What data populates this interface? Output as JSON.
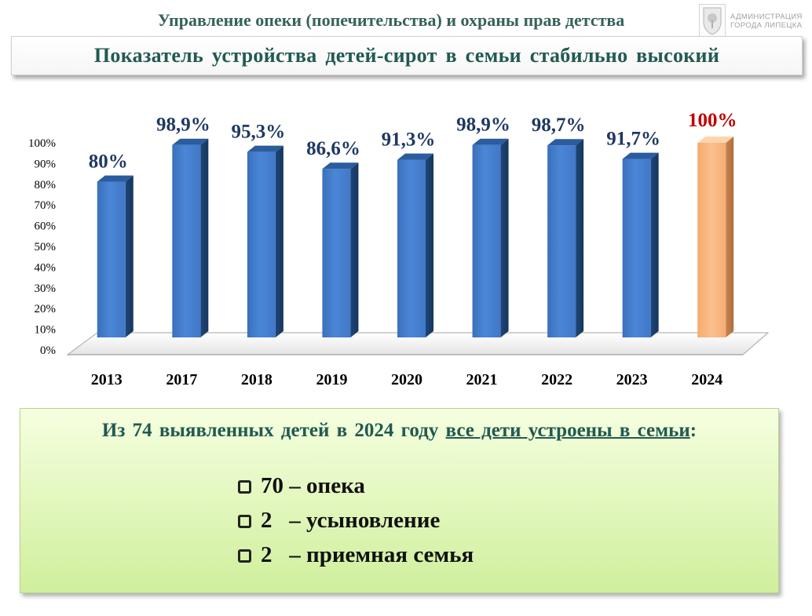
{
  "header": {
    "department_title": "Управление опеки (попечительства) и охраны прав детства",
    "logo_line1": "АДМИНИСТРАЦИЯ",
    "logo_line2": "ГОРОДА ЛИПЕЦКА"
  },
  "banner": {
    "title": "Показатель устройства детей-сирот в семьи стабильно высокий"
  },
  "chart_data": {
    "type": "bar",
    "title": "",
    "xlabel": "",
    "ylabel": "",
    "ylim": [
      0,
      100
    ],
    "y_ticks": [
      "0%",
      "10%",
      "20%",
      "30%",
      "40%",
      "50%",
      "60%",
      "70%",
      "80%",
      "90%",
      "100%"
    ],
    "categories": [
      "2013",
      "2017",
      "2018",
      "2019",
      "2020",
      "2021",
      "2022",
      "2023",
      "2024"
    ],
    "values": [
      80,
      98.9,
      95.3,
      86.6,
      91.3,
      98.9,
      98.7,
      91.7,
      100
    ],
    "data_labels": [
      "80%",
      "98,9%",
      "95,3%",
      "86,6%",
      "91,3%",
      "98,9%",
      "98,7%",
      "91,7%",
      "100%"
    ],
    "highlight_category": "2024",
    "grid": false,
    "style": "3d-column",
    "colors": {
      "bar": "#3f78c8",
      "bar_highlight": "#f9b27a",
      "label": "#1f3864",
      "label_highlight": "#c00000"
    }
  },
  "info": {
    "headline_prefix": "Из 74 выявленных детей в 2024 году ",
    "headline_emphasis": "все дети устроены в семьи",
    "headline_suffix": ":",
    "items": [
      "70 – опека",
      "2   – усыновление",
      "2   – приемная семья"
    ]
  }
}
